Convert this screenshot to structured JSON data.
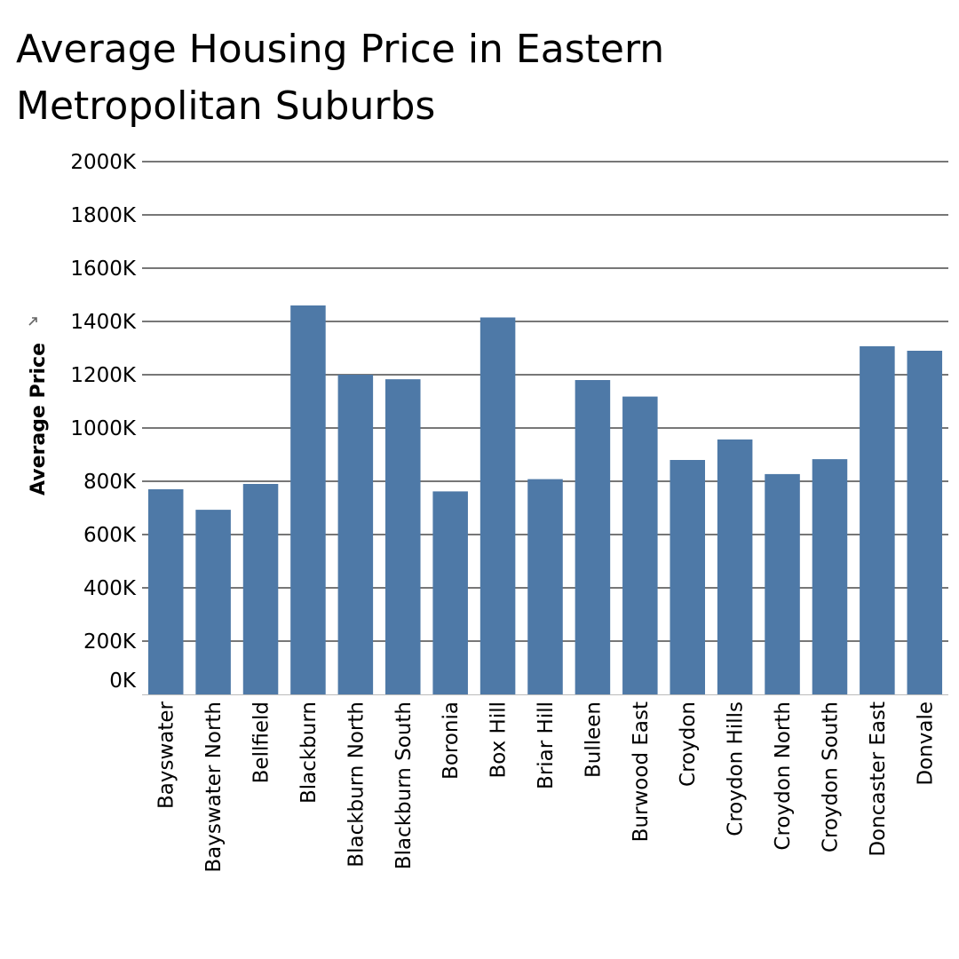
{
  "chart_data": {
    "type": "bar",
    "title": "Average Housing Price in Eastern Metropolitan Suburbs",
    "ylabel": "Average Price",
    "xlabel": "",
    "ylim": [
      0,
      2000000
    ],
    "yticks": [
      0,
      200000,
      400000,
      600000,
      800000,
      1000000,
      1200000,
      1400000,
      1600000,
      1800000,
      2000000
    ],
    "ytick_labels": [
      "0K",
      "200K",
      "400K",
      "600K",
      "800K",
      "1000K",
      "1200K",
      "1400K",
      "1600K",
      "1800K",
      "2000K"
    ],
    "categories": [
      "Bayswater",
      "Bayswater North",
      "Bellfield",
      "Blackburn",
      "Blackburn North",
      "Blackburn South",
      "Boronia",
      "Box Hill",
      "Briar Hill",
      "Bulleen",
      "Burwood East",
      "Croydon",
      "Croydon Hills",
      "Croydon North",
      "Croydon South",
      "Doncaster East",
      "Donvale"
    ],
    "values": [
      770000,
      693000,
      790000,
      1460000,
      1200000,
      1183000,
      762000,
      1415000,
      808000,
      1180000,
      1118000,
      880000,
      957000,
      827000,
      883000,
      1307000,
      1290000
    ],
    "bar_color": "#4e79a7",
    "grid": true,
    "gridline_color": "#777777"
  }
}
